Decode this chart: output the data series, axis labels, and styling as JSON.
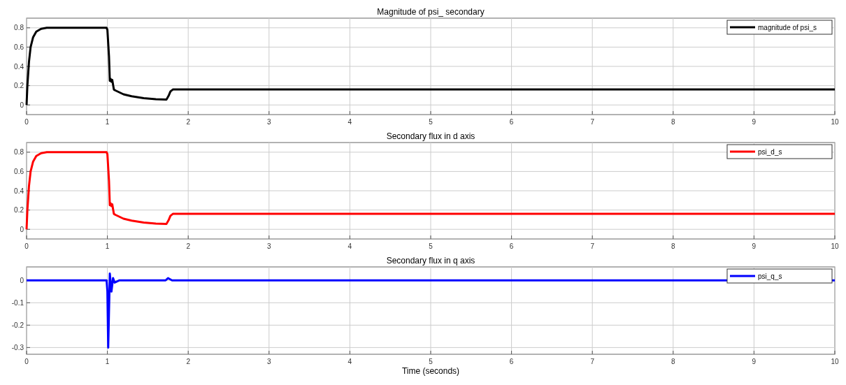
{
  "chart_data": [
    {
      "type": "line",
      "title": "Magnitude of psi_ secondary",
      "x": [
        0,
        0.01,
        0.03,
        0.05,
        0.08,
        0.12,
        0.18,
        0.25,
        0.99,
        1.0,
        1.02,
        1.03,
        1.04,
        1.05,
        1.06,
        1.08,
        1.1,
        1.2,
        1.3,
        1.45,
        1.6,
        1.73,
        1.76,
        1.78,
        1.81,
        10
      ],
      "series": [
        {
          "name": "magnitude of psi_s",
          "color": "#000000",
          "values": [
            0,
            0.2,
            0.45,
            0.6,
            0.7,
            0.76,
            0.79,
            0.8,
            0.8,
            0.78,
            0.5,
            0.25,
            0.27,
            0.24,
            0.26,
            0.16,
            0.15,
            0.11,
            0.09,
            0.07,
            0.06,
            0.055,
            0.1,
            0.14,
            0.16,
            0.16
          ]
        }
      ],
      "xlim": [
        0,
        10
      ],
      "xticks": [
        0,
        1,
        2,
        3,
        4,
        5,
        6,
        7,
        8,
        9,
        10
      ],
      "ylim": [
        -0.1,
        0.9
      ],
      "yticks": [
        0,
        0.2,
        0.4,
        0.6,
        0.8
      ],
      "grid": true,
      "legend": "top right"
    },
    {
      "type": "line",
      "title": "Secondary flux in d axis",
      "x": [
        0,
        0.01,
        0.03,
        0.05,
        0.08,
        0.12,
        0.18,
        0.25,
        0.99,
        1.0,
        1.02,
        1.03,
        1.04,
        1.05,
        1.06,
        1.08,
        1.1,
        1.2,
        1.3,
        1.45,
        1.6,
        1.73,
        1.76,
        1.78,
        1.81,
        10
      ],
      "series": [
        {
          "name": "psi_d_s",
          "color": "#ff0000",
          "values": [
            0,
            0.2,
            0.45,
            0.6,
            0.7,
            0.76,
            0.79,
            0.8,
            0.8,
            0.78,
            0.5,
            0.25,
            0.27,
            0.24,
            0.26,
            0.16,
            0.15,
            0.11,
            0.09,
            0.07,
            0.06,
            0.055,
            0.1,
            0.14,
            0.16,
            0.16
          ]
        }
      ],
      "xlim": [
        0,
        10
      ],
      "xticks": [
        0,
        1,
        2,
        3,
        4,
        5,
        6,
        7,
        8,
        9,
        10
      ],
      "ylim": [
        -0.1,
        0.9
      ],
      "yticks": [
        0,
        0.2,
        0.4,
        0.6,
        0.8
      ],
      "grid": true,
      "legend": "top right"
    },
    {
      "type": "line",
      "title": "Secondary flux in q axis",
      "xlabel": "Time (seconds)",
      "x": [
        0,
        0.99,
        1.0,
        1.01,
        1.03,
        1.05,
        1.07,
        1.09,
        1.15,
        1.72,
        1.75,
        1.8,
        10
      ],
      "series": [
        {
          "name": "psi_q_s",
          "color": "#0000ff",
          "values": [
            0,
            0,
            -0.05,
            -0.3,
            0.03,
            -0.05,
            0.01,
            -0.01,
            0,
            0,
            0.01,
            0,
            0
          ]
        }
      ],
      "xlim": [
        0,
        10
      ],
      "xticks": [
        0,
        1,
        2,
        3,
        4,
        5,
        6,
        7,
        8,
        9,
        10
      ],
      "ylim": [
        -0.33,
        0.06
      ],
      "yticks": [
        -0.3,
        -0.2,
        -0.1,
        0
      ],
      "grid": true,
      "legend": "top right"
    }
  ]
}
